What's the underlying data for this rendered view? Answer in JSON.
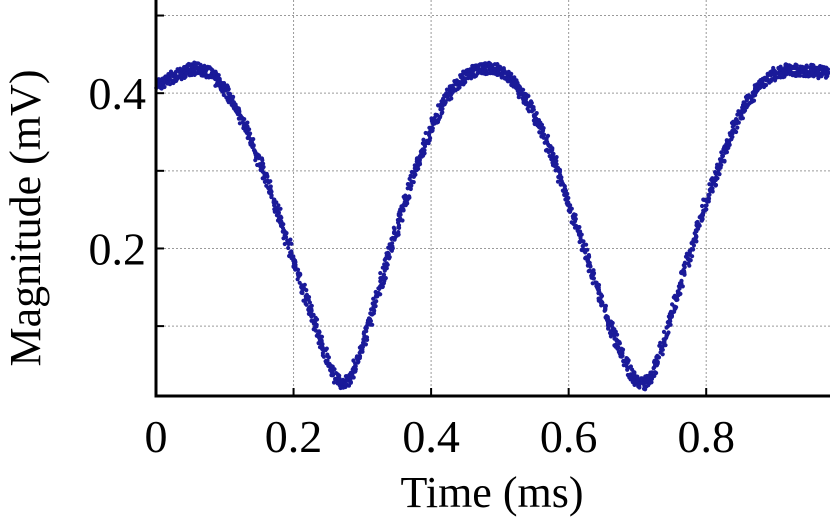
{
  "chart_data": {
    "type": "scatter",
    "title": "",
    "xlabel": "Time (ms)",
    "ylabel": "Magnitude (mV)",
    "xlim": [
      0,
      0.98
    ],
    "ylim": [
      0.01,
      0.52
    ],
    "x_ticks": [
      0,
      0.2,
      0.4,
      0.6,
      0.8
    ],
    "x_tick_labels": [
      "0",
      "0.2",
      "0.4",
      "0.6",
      "0.8"
    ],
    "y_ticks": [
      0.2,
      0.4
    ],
    "y_tick_labels": [
      "0.2",
      "0.4"
    ],
    "y_grid": [
      0.1,
      0.2,
      0.3,
      0.4,
      0.5
    ],
    "grid": true,
    "legend": "none",
    "series": [
      {
        "color": "#1a1a99",
        "x": [
          0.0,
          0.02,
          0.04,
          0.06,
          0.08,
          0.1,
          0.12,
          0.14,
          0.16,
          0.18,
          0.2,
          0.22,
          0.24,
          0.25,
          0.26,
          0.27,
          0.28,
          0.29,
          0.3,
          0.32,
          0.34,
          0.36,
          0.38,
          0.4,
          0.42,
          0.44,
          0.46,
          0.48,
          0.5,
          0.52,
          0.54,
          0.56,
          0.58,
          0.6,
          0.62,
          0.64,
          0.66,
          0.68,
          0.69,
          0.7,
          0.71,
          0.72,
          0.73,
          0.74,
          0.76,
          0.78,
          0.8,
          0.82,
          0.84,
          0.86,
          0.88,
          0.9,
          0.92,
          0.94,
          0.96,
          0.98
        ],
        "y": [
          0.41,
          0.418,
          0.428,
          0.432,
          0.425,
          0.405,
          0.375,
          0.335,
          0.29,
          0.24,
          0.185,
          0.13,
          0.08,
          0.055,
          0.035,
          0.025,
          0.03,
          0.05,
          0.075,
          0.135,
          0.195,
          0.255,
          0.31,
          0.355,
          0.392,
          0.415,
          0.428,
          0.432,
          0.43,
          0.415,
          0.39,
          0.355,
          0.31,
          0.26,
          0.205,
          0.15,
          0.1,
          0.06,
          0.04,
          0.028,
          0.025,
          0.035,
          0.055,
          0.085,
          0.145,
          0.205,
          0.26,
          0.31,
          0.355,
          0.39,
          0.412,
          0.425,
          0.43,
          0.43,
          0.428,
          0.425
        ]
      }
    ]
  }
}
